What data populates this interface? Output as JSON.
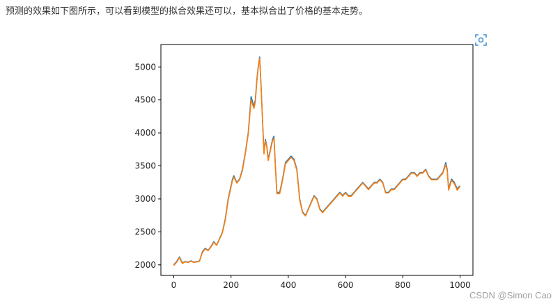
{
  "article": {
    "intro_text": "预测的效果如下图所示，可以看到模型的拟合效果还可以，基本拟合出了价格的基本走势。"
  },
  "toolbar": {
    "expand_icon": "expand-view-icon"
  },
  "watermark": {
    "text": "CSDN @Simon Cao"
  },
  "chart_data": {
    "type": "line",
    "title": "",
    "xlabel": "",
    "ylabel": "",
    "xlim": [
      -45,
      1045
    ],
    "ylim": [
      1840,
      5340
    ],
    "xticks": [
      0,
      200,
      400,
      600,
      800,
      1000
    ],
    "yticks": [
      2000,
      2500,
      3000,
      3500,
      4000,
      4500,
      5000
    ],
    "grid": false,
    "legend": "none",
    "series": [
      {
        "color": "#1f77b4",
        "x": [
          0,
          10,
          20,
          30,
          40,
          50,
          60,
          70,
          80,
          90,
          100,
          110,
          120,
          130,
          140,
          150,
          160,
          170,
          180,
          190,
          200,
          205,
          210,
          220,
          230,
          240,
          250,
          260,
          270,
          280,
          285,
          290,
          295,
          300,
          305,
          310,
          315,
          320,
          325,
          330,
          335,
          340,
          345,
          350,
          355,
          360,
          370,
          380,
          390,
          400,
          410,
          420,
          430,
          440,
          450,
          460,
          470,
          480,
          490,
          500,
          510,
          520,
          530,
          540,
          550,
          560,
          570,
          580,
          590,
          600,
          610,
          620,
          630,
          640,
          650,
          660,
          670,
          680,
          690,
          700,
          710,
          720,
          730,
          740,
          750,
          760,
          770,
          780,
          790,
          800,
          810,
          820,
          830,
          840,
          850,
          860,
          870,
          880,
          890,
          900,
          910,
          920,
          930,
          940,
          950,
          955,
          960,
          970,
          980,
          990,
          1000
        ],
        "y": [
          2000,
          2050,
          2120,
          2030,
          2050,
          2040,
          2060,
          2040,
          2050,
          2060,
          2200,
          2250,
          2220,
          2280,
          2350,
          2300,
          2400,
          2500,
          2700,
          3000,
          3200,
          3300,
          3350,
          3250,
          3300,
          3450,
          3700,
          4000,
          4550,
          4400,
          4500,
          4800,
          5000,
          5150,
          4700,
          4200,
          3700,
          3900,
          3800,
          3600,
          3700,
          3800,
          3900,
          3950,
          3500,
          3100,
          3100,
          3300,
          3550,
          3600,
          3650,
          3600,
          3450,
          3000,
          2800,
          2750,
          2850,
          2950,
          3050,
          3000,
          2850,
          2800,
          2850,
          2900,
          2950,
          3000,
          3050,
          3100,
          3050,
          3100,
          3050,
          3050,
          3100,
          3150,
          3200,
          3250,
          3200,
          3150,
          3200,
          3250,
          3250,
          3300,
          3250,
          3100,
          3100,
          3150,
          3150,
          3200,
          3250,
          3300,
          3300,
          3350,
          3400,
          3400,
          3350,
          3400,
          3400,
          3450,
          3350,
          3300,
          3300,
          3300,
          3350,
          3400,
          3550,
          3450,
          3150,
          3300,
          3250,
          3150,
          3200
        ]
      },
      {
        "color": "#ff7f0e",
        "x": [
          0,
          10,
          20,
          30,
          40,
          50,
          60,
          70,
          80,
          90,
          100,
          110,
          120,
          130,
          140,
          150,
          160,
          170,
          180,
          190,
          200,
          205,
          210,
          220,
          230,
          240,
          250,
          260,
          270,
          280,
          285,
          290,
          295,
          300,
          305,
          310,
          315,
          320,
          325,
          330,
          335,
          340,
          345,
          350,
          355,
          360,
          370,
          380,
          390,
          400,
          410,
          420,
          430,
          440,
          450,
          460,
          470,
          480,
          490,
          500,
          510,
          520,
          530,
          540,
          550,
          560,
          570,
          580,
          590,
          600,
          610,
          620,
          630,
          640,
          650,
          660,
          670,
          680,
          690,
          700,
          710,
          720,
          730,
          740,
          750,
          760,
          770,
          780,
          790,
          800,
          810,
          820,
          830,
          840,
          850,
          860,
          870,
          880,
          890,
          900,
          910,
          920,
          930,
          940,
          950,
          955,
          960,
          970,
          980,
          990,
          1000
        ],
        "y": [
          1990,
          2040,
          2110,
          2020,
          2045,
          2035,
          2055,
          2035,
          2045,
          2055,
          2190,
          2240,
          2215,
          2270,
          2340,
          2295,
          2390,
          2490,
          2680,
          2980,
          3180,
          3280,
          3330,
          3240,
          3290,
          3430,
          3680,
          3980,
          4500,
          4370,
          4470,
          4770,
          4980,
          5130,
          4680,
          4180,
          3680,
          3880,
          3780,
          3580,
          3680,
          3780,
          3880,
          3920,
          3480,
          3080,
          3080,
          3280,
          3530,
          3580,
          3630,
          3580,
          3430,
          2980,
          2790,
          2740,
          2840,
          2940,
          3040,
          2990,
          2840,
          2790,
          2840,
          2890,
          2940,
          2990,
          3040,
          3090,
          3040,
          3090,
          3040,
          3040,
          3090,
          3140,
          3190,
          3240,
          3190,
          3140,
          3190,
          3240,
          3240,
          3290,
          3240,
          3090,
          3090,
          3140,
          3140,
          3190,
          3240,
          3290,
          3290,
          3340,
          3390,
          3390,
          3340,
          3390,
          3390,
          3440,
          3340,
          3290,
          3290,
          3290,
          3340,
          3390,
          3520,
          3430,
          3130,
          3280,
          3230,
          3130,
          3190
        ]
      }
    ]
  }
}
